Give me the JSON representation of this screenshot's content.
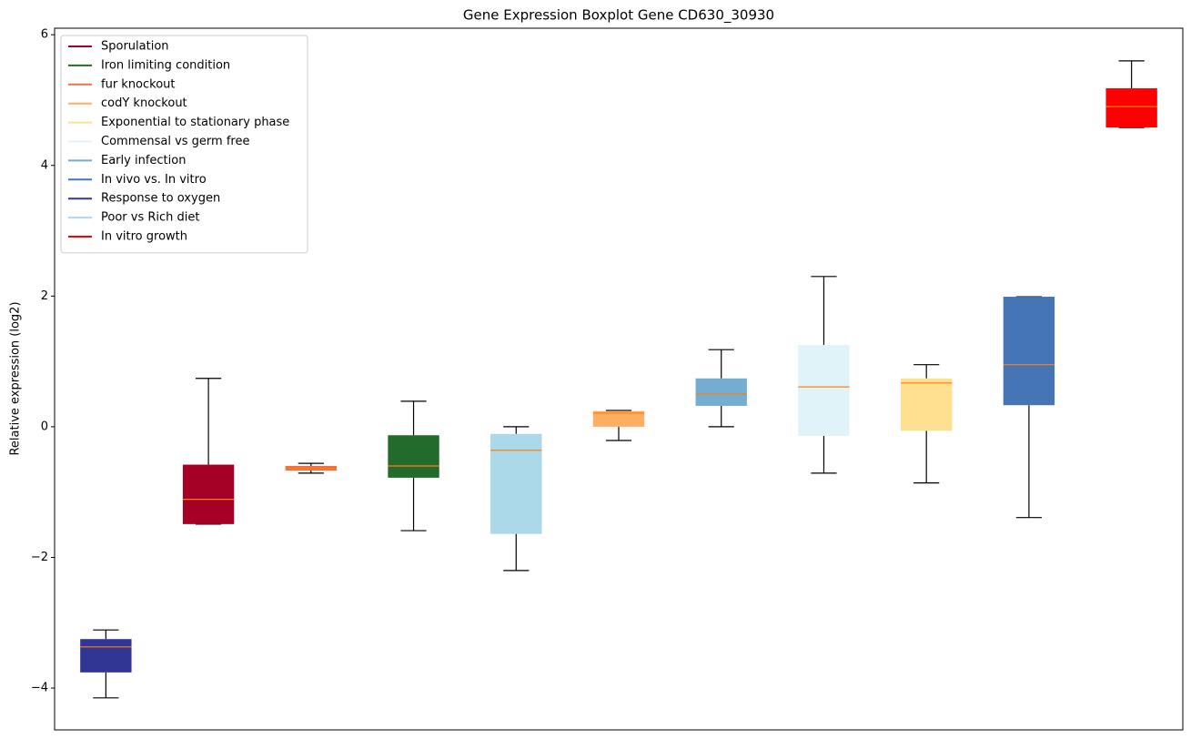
{
  "chart_data": {
    "type": "boxplot",
    "title": "Gene Expression Boxplot Gene CD630_30930",
    "y_label": "Relative expression (log2)",
    "xlim": [
      0.5,
      11.5
    ],
    "ylim": [
      -4.64,
      6.1
    ],
    "yticks": [
      {
        "value": -4,
        "label": "−4"
      },
      {
        "value": -2,
        "label": "−2"
      },
      0,
      2,
      4,
      6
    ],
    "median_color": "#ff7f0e",
    "whisker_color": "#000000",
    "legend": "upper left",
    "series": [
      {
        "name": "Sporulation",
        "color": "#a50026",
        "x": 2,
        "values": [
          -1.49,
          -1.49,
          -1.11,
          -0.58,
          0.74
        ]
      },
      {
        "name": "Iron limiting condition",
        "color": "#226b2c",
        "x": 4,
        "values": [
          -1.59,
          -0.78,
          -0.6,
          -0.13,
          0.39
        ]
      },
      {
        "name": "fur knockout",
        "color": "#f46d43",
        "x": 3,
        "values": [
          -0.71,
          -0.67,
          -0.64,
          -0.6,
          -0.56
        ]
      },
      {
        "name": "codY knockout",
        "color": "#fdae61",
        "x": 6,
        "values": [
          -0.21,
          0.0,
          0.21,
          0.24,
          0.25
        ]
      },
      {
        "name": "Exponential to stationary phase",
        "color": "#fee090",
        "x": 9,
        "values": [
          -0.86,
          -0.06,
          0.67,
          0.74,
          0.95
        ]
      },
      {
        "name": "Commensal vs germ free",
        "color": "#e0f3f8",
        "x": 8,
        "values": [
          -0.71,
          -0.14,
          0.61,
          1.25,
          2.3
        ]
      },
      {
        "name": "Early infection",
        "color": "#74add1",
        "x": 7,
        "values": [
          0.0,
          0.32,
          0.5,
          0.74,
          1.18
        ]
      },
      {
        "name": "In vivo vs. In vitro",
        "color": "#4575b4",
        "x": 10,
        "values": [
          -1.39,
          0.33,
          0.95,
          1.99,
          1.99
        ]
      },
      {
        "name": "Response to oxygen",
        "color": "#313695",
        "x": 1,
        "values": [
          -4.15,
          -3.76,
          -3.37,
          -3.25,
          -3.11
        ]
      },
      {
        "name": "Poor vs Rich diet",
        "color": "#abd9e9",
        "x": 5,
        "values": [
          -2.2,
          -1.64,
          -0.36,
          -0.11,
          0.0
        ]
      },
      {
        "name": "In vitro growth",
        "color": "#ff0000",
        "x": 11,
        "values": [
          4.58,
          4.58,
          4.9,
          5.18,
          5.6
        ]
      }
    ]
  }
}
